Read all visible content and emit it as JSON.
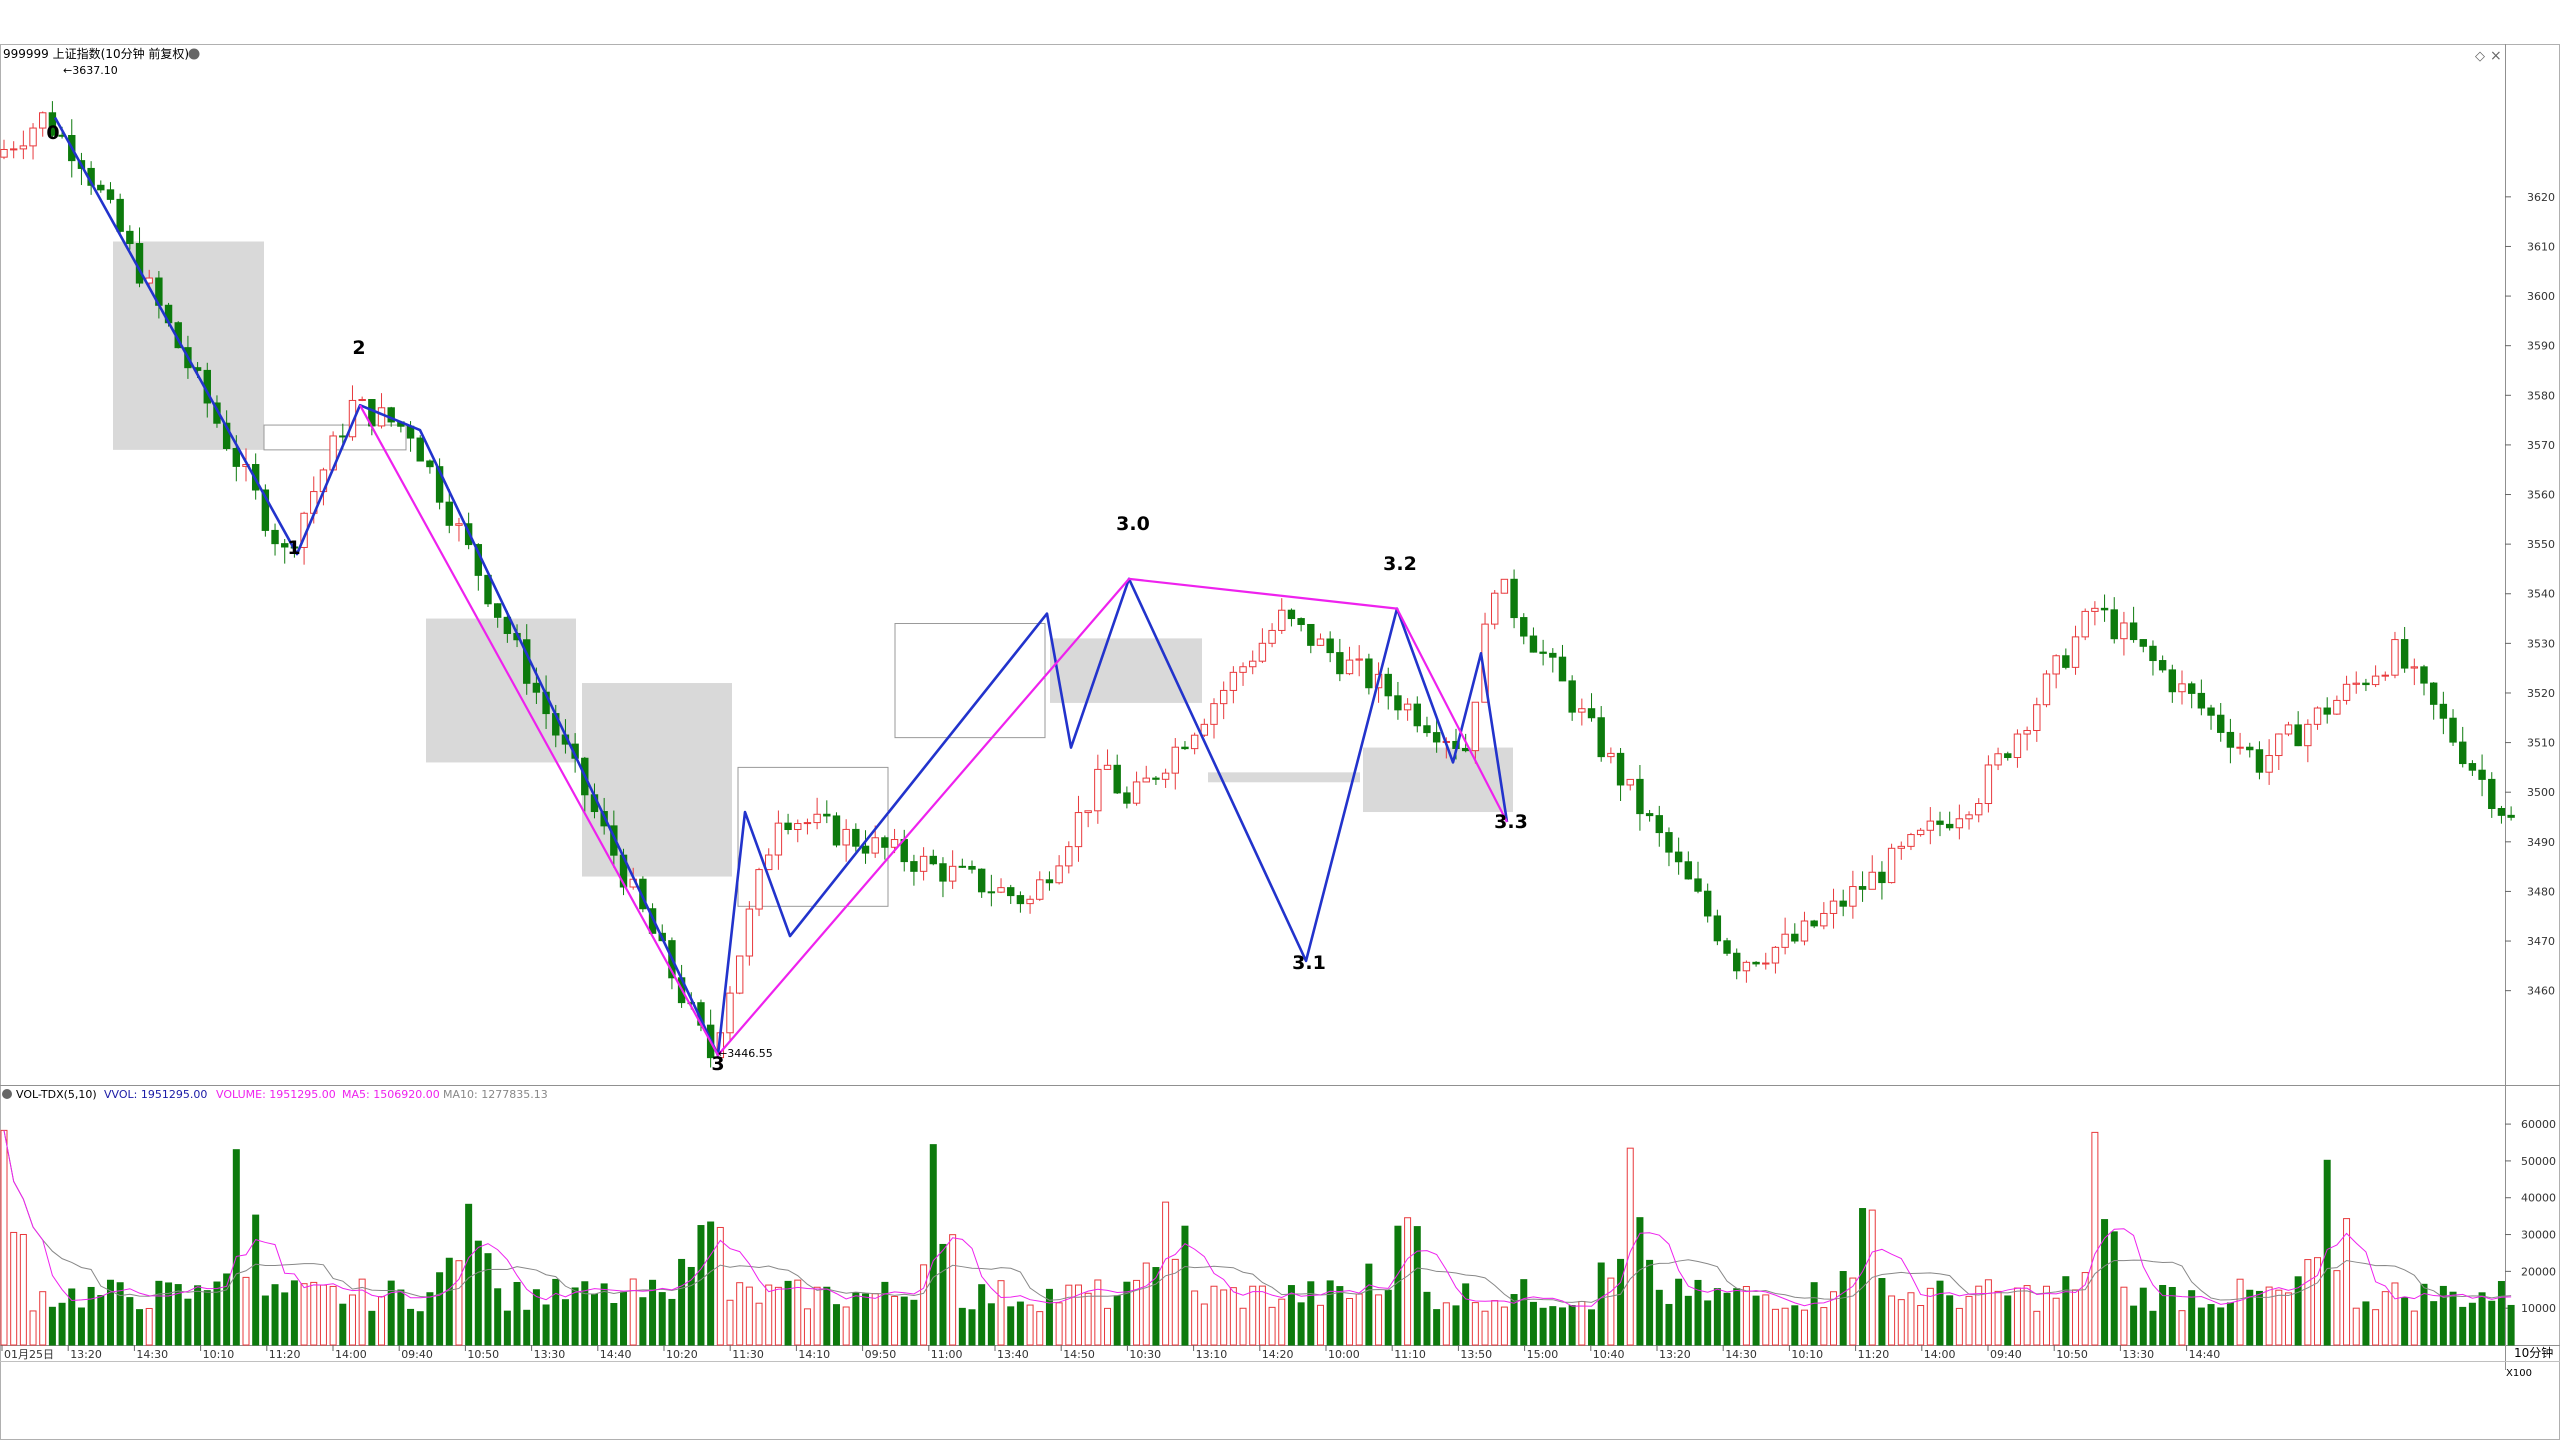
{
  "header": {
    "title": "999999 上证指数(10分钟 前复权)",
    "settings_glyph": "◇",
    "close_glyph": "×"
  },
  "volume_header": {
    "indicator": "VOL-TDX(5,10)",
    "vvol": "VVOL: 1951295.00",
    "volume": "VOLUME: 1951295.00",
    "ma5": "MA5: 1506920.00",
    "ma10": "MA10: 1277835.13"
  },
  "labels": {
    "high_value": "3637.10",
    "low_value": "3446.55",
    "period": "10分钟",
    "vol_unit": "X100"
  },
  "colors": {
    "up": "#e8393c",
    "down": "#0d7a0d",
    "blue_line": "#2233cc",
    "magenta_line": "#ee22ee",
    "box_fill": "#d9d9d9",
    "ma5": "#ee22ee",
    "ma10": "#888888"
  },
  "chart_data": [
    {
      "type": "candlestick",
      "y_ticks": [
        3460,
        3470,
        3480,
        3490,
        3500,
        3510,
        3520,
        3530,
        3540,
        3550,
        3560,
        3570,
        3580,
        3590,
        3600,
        3610,
        3620
      ],
      "y_range": [
        3443,
        3650
      ],
      "x_tick_labels": [
        "01月25日",
        "13:20",
        "14:30",
        "10:10",
        "11:20",
        "14:00",
        "09:40",
        "10:50",
        "13:30",
        "14:40",
        "10:20",
        "11:30",
        "14:10",
        "09:50",
        "11:00",
        "13:40",
        "14:50",
        "10:30",
        "13:10",
        "14:20",
        "10:00",
        "11:10",
        "13:50",
        "15:00",
        "10:40",
        "13:20",
        "14:30",
        "10:10",
        "11:20",
        "14:00",
        "09:40",
        "10:50",
        "13:30",
        "14:40"
      ],
      "wave_points": [
        {
          "label": "0",
          "value": 3636
        },
        {
          "label": "1",
          "value": 3548
        },
        {
          "label": "2",
          "value": 3578
        },
        {
          "label": "3",
          "value": 3447
        },
        {
          "label": "3.0",
          "value": 3543
        },
        {
          "label": "3.1",
          "value": 3466
        },
        {
          "label": "3.2",
          "value": 3537
        },
        {
          "label": "3.3",
          "value": 3494
        }
      ],
      "blue_path": [
        3636,
        3548,
        3578,
        3573,
        3447,
        3496,
        3471,
        3536,
        3509,
        3543,
        3466,
        3537,
        3506,
        3528,
        3494
      ],
      "magenta_path": [
        3578,
        3447,
        3543,
        3537,
        3494
      ],
      "zones": [
        {
          "low": 3569,
          "high": 3611,
          "filled": true
        },
        {
          "low": 3569,
          "high": 3574,
          "filled": false
        },
        {
          "low": 3506,
          "high": 3535,
          "filled": true
        },
        {
          "low": 3483,
          "high": 3522,
          "filled": true
        },
        {
          "low": 3477,
          "high": 3505,
          "filled": false
        },
        {
          "low": 3511,
          "high": 3534,
          "filled": false
        },
        {
          "low": 3518,
          "high": 3531,
          "filled": true
        },
        {
          "low": 3502,
          "high": 3504,
          "filled": true
        },
        {
          "low": 3496,
          "high": 3509,
          "filled": true
        }
      ],
      "high_value": 3637.1,
      "low_value": 3446.55
    },
    {
      "type": "bar",
      "series": [
        {
          "name": "VOLUME",
          "color": "mixed"
        },
        {
          "name": "MA5",
          "color": "#ee22ee"
        },
        {
          "name": "MA10",
          "color": "#888888"
        }
      ],
      "y_ticks": [
        10000,
        20000,
        30000,
        40000,
        50000,
        60000
      ],
      "y_range": [
        0,
        66000
      ]
    }
  ]
}
